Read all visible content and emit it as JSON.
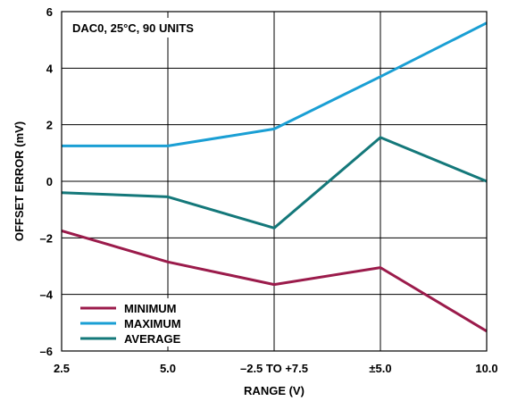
{
  "chart_data": {
    "type": "line",
    "categories": [
      "2.5",
      "5.0",
      "–2.5 TO +7.5",
      "±5.0",
      "10.0"
    ],
    "xlabel": "RANGE (V)",
    "ylabel": "OFFSET ERROR (mV)",
    "ylim": [
      -6,
      6
    ],
    "yticks": [
      "6",
      "4",
      "2",
      "0",
      "–2",
      "–4",
      "–6"
    ],
    "grid": true,
    "annotation": "DAC0, 25°C, 90 UNITS",
    "legend_position": "bottom-left",
    "series": [
      {
        "name": "MINIMUM",
        "color": "#9b1b4b",
        "values": [
          -1.75,
          -2.85,
          -3.65,
          -3.05,
          -5.3
        ]
      },
      {
        "name": "MAXIMUM",
        "color": "#1a9fd4",
        "values": [
          1.25,
          1.25,
          1.85,
          3.7,
          5.6
        ]
      },
      {
        "name": "AVERAGE",
        "color": "#14787a",
        "values": [
          -0.4,
          -0.55,
          -1.65,
          1.55,
          0.0
        ]
      }
    ]
  }
}
